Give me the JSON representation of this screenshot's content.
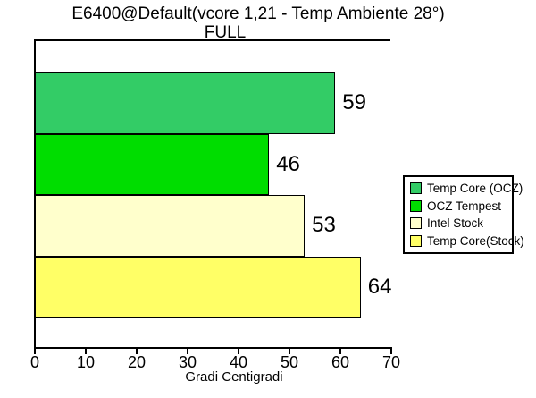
{
  "title": "E6400@Default(vcore 1,21 - Temp Ambiente 28°)",
  "subtitle": "FULL",
  "chart_data": {
    "type": "bar",
    "orientation": "horizontal",
    "title": "E6400@Default(vcore 1,21 - Temp Ambiente 28°)",
    "subtitle": "FULL",
    "xlabel": "Gradi Centigradi",
    "ylabel": "",
    "xlim": [
      0,
      70
    ],
    "xticks": [
      0,
      10,
      20,
      30,
      40,
      50,
      60,
      70
    ],
    "grid": false,
    "legend_position": "right",
    "series": [
      {
        "name": "Temp Core (OCZ)",
        "value": 59,
        "color": "#33CC66"
      },
      {
        "name": "OCZ Tempest",
        "value": 46,
        "color": "#00DD00"
      },
      {
        "name": "Intel Stock",
        "value": 53,
        "color": "#FFFFCC"
      },
      {
        "name": "Temp Core(Stock)",
        "value": 64,
        "color": "#FFFF66"
      }
    ],
    "value_labels": [
      59,
      46,
      53,
      64
    ],
    "colors": {
      "background": "#FFFFFF",
      "axis": "#000000",
      "text": "#000000"
    }
  }
}
